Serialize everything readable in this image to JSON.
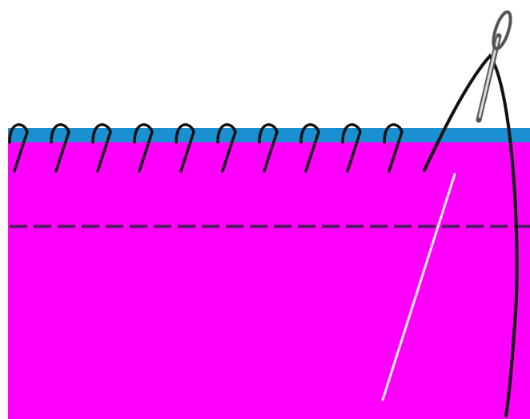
{
  "diagram": {
    "colors": {
      "background": "#ffffff",
      "fabric": "#ff00ff",
      "edge": "#1a8fd1",
      "thread": "#111111",
      "dash": "#5a1a6a",
      "needle_highlight": "#f2f2f2",
      "needle_shadow": "#555555",
      "needle_body": "#d9d9d9"
    },
    "stitch_count": 10,
    "icons": [
      "needle-icon",
      "thread-icon"
    ]
  }
}
